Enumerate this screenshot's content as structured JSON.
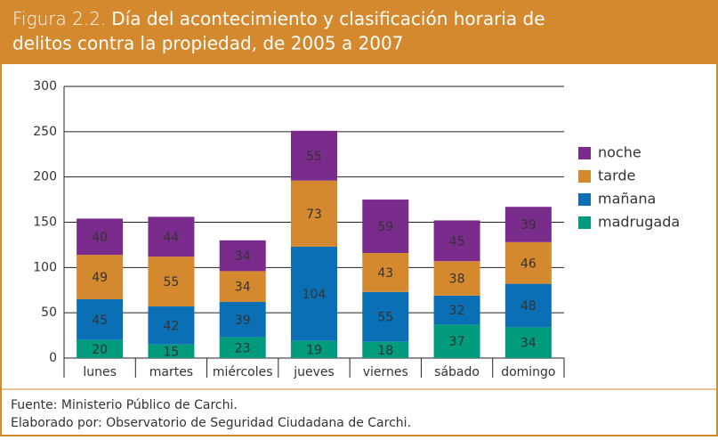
{
  "chart_data": {
    "type": "stacked_bar",
    "figure_number": "Figura 2.2.",
    "title": "Día del acontecimiento y clasificación horaria de delitos contra la propiedad, de 2005 a 2007",
    "categories": [
      "lunes",
      "martes",
      "miércoles",
      "jueves",
      "viernes",
      "sábado",
      "domingo"
    ],
    "series": [
      {
        "name": "madrugada",
        "color": "#009a7d",
        "values": [
          20,
          15,
          23,
          19,
          18,
          37,
          34
        ]
      },
      {
        "name": "mañana",
        "color": "#0a6fb4",
        "values": [
          45,
          42,
          39,
          104,
          55,
          32,
          48
        ]
      },
      {
        "name": "tarde",
        "color": "#d4892e",
        "values": [
          49,
          55,
          34,
          73,
          43,
          38,
          46
        ]
      },
      {
        "name": "noche",
        "color": "#7a2c8c",
        "values": [
          40,
          44,
          34,
          55,
          59,
          45,
          39
        ]
      }
    ],
    "ylim": [
      0,
      300
    ],
    "yticks": [
      0,
      50,
      100,
      150,
      200,
      250,
      300
    ],
    "grid": true,
    "legend": "right",
    "notes": [
      "Fuente: Ministerio Público de Carchi.",
      "Elaborado por: Observatorio de Seguridad Ciudadana de Carchi."
    ]
  }
}
